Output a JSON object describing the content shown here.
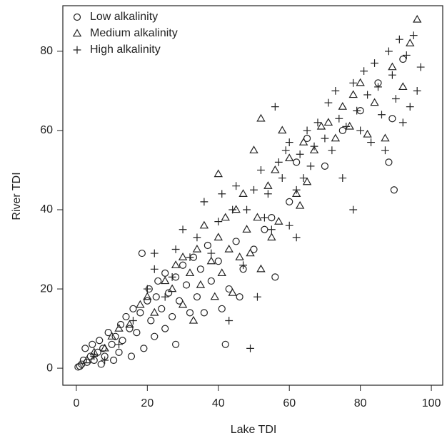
{
  "chart_data": {
    "type": "scatter",
    "x_label": "Lake TDI",
    "y_label": "River TDI",
    "xlim": [
      -3.8,
      103.2
    ],
    "ylim": [
      -4.3,
      91.5
    ],
    "xticks": [
      0,
      20,
      40,
      60,
      80,
      100
    ],
    "yticks": [
      0,
      20,
      40,
      60,
      80
    ],
    "legend": "top-left",
    "series": [
      {
        "name": "Low alkalinity",
        "marker": "circle",
        "color": "#222222",
        "x": [
          0.5,
          1,
          1.5,
          2,
          2.5,
          3,
          4,
          4.5,
          5,
          6,
          6.5,
          7,
          7.5,
          8,
          9,
          10,
          10.5,
          11,
          12,
          12.5,
          13,
          14,
          15,
          15.5,
          16,
          17,
          18,
          18.5,
          19,
          20,
          20.5,
          21,
          22,
          22.5,
          23,
          24,
          25,
          25,
          26,
          27,
          28,
          28,
          29,
          30,
          31,
          32,
          33,
          34,
          35,
          36,
          37,
          38,
          40,
          41,
          42,
          43,
          45,
          46,
          47,
          50,
          53,
          55,
          56,
          60,
          62,
          65,
          70,
          75,
          80,
          85,
          88,
          89.5,
          89,
          92
        ],
        "y": [
          0.3,
          0.5,
          1,
          2,
          5,
          1.5,
          3,
          6,
          2,
          4,
          7,
          1,
          5,
          3,
          9,
          6,
          2,
          8,
          4,
          11,
          7,
          13,
          10,
          3,
          15,
          9,
          14,
          29,
          5,
          17,
          20,
          12,
          8,
          18,
          22,
          15,
          10,
          24,
          19,
          13,
          6,
          23,
          17,
          26,
          21,
          14,
          28,
          18,
          25,
          14,
          31,
          22,
          27,
          15,
          6,
          20,
          32,
          18,
          25,
          30,
          35,
          38,
          23,
          42,
          52,
          58,
          51,
          60,
          65,
          72,
          52,
          45,
          63,
          78
        ]
      },
      {
        "name": "Medium alkalinity",
        "marker": "triangle",
        "color": "#222222",
        "x": [
          3,
          5,
          8,
          10,
          12,
          15,
          18,
          20,
          22,
          25,
          27,
          28,
          30,
          30,
          32,
          33,
          34,
          35,
          36,
          38,
          39,
          40,
          40,
          41,
          42,
          43,
          44,
          45,
          46,
          47,
          48,
          49,
          50,
          51,
          52,
          52,
          54,
          55,
          56,
          57,
          58,
          60,
          62,
          63,
          64,
          65,
          67,
          69,
          71,
          73,
          75,
          77,
          78,
          80,
          82,
          84,
          87,
          89,
          92,
          94,
          96
        ],
        "y": [
          2,
          4,
          5,
          8,
          10,
          11,
          16,
          18,
          14,
          22,
          20,
          26,
          16,
          28,
          24,
          12,
          30,
          21,
          36,
          27,
          18,
          33,
          49,
          24,
          38,
          30,
          19,
          40,
          28,
          44,
          35,
          29,
          55,
          38,
          25,
          63,
          46,
          33,
          50,
          37,
          60,
          53,
          44,
          41,
          57,
          47,
          55,
          61,
          62,
          58,
          66,
          61,
          69,
          72,
          59,
          67,
          58,
          76,
          71,
          82,
          88
        ]
      },
      {
        "name": "High alkalinity",
        "marker": "plus",
        "color": "#222222",
        "x": [
          5,
          8,
          12,
          16,
          20,
          22,
          22,
          25,
          27,
          28,
          30,
          32,
          34,
          36,
          38,
          40,
          41,
          43,
          44,
          45,
          47,
          48,
          49,
          50,
          51,
          52,
          53,
          54,
          55,
          56,
          57,
          58,
          59,
          60,
          60,
          62,
          62,
          63,
          64,
          65,
          66,
          67,
          68,
          70,
          71,
          72,
          73,
          74,
          75,
          76,
          78,
          78,
          79,
          80,
          81,
          82,
          83,
          84,
          85,
          86,
          87,
          88,
          89,
          90,
          91,
          92,
          93,
          94,
          95,
          96,
          97
        ],
        "y": [
          3,
          2,
          6,
          12,
          20,
          29,
          25,
          18,
          23,
          30,
          35,
          28,
          33,
          42,
          29,
          37,
          44,
          12,
          40,
          46,
          26,
          40,
          5,
          45,
          18,
          50,
          38,
          44,
          35,
          66,
          52,
          48,
          55,
          36,
          57,
          45,
          33,
          54,
          48,
          60,
          51,
          56,
          62,
          58,
          67,
          55,
          70,
          63,
          48,
          61,
          40,
          72,
          65,
          60,
          75,
          69,
          57,
          77,
          71,
          64,
          55,
          80,
          74,
          68,
          83,
          62,
          79,
          66,
          84,
          70,
          76
        ]
      }
    ]
  }
}
